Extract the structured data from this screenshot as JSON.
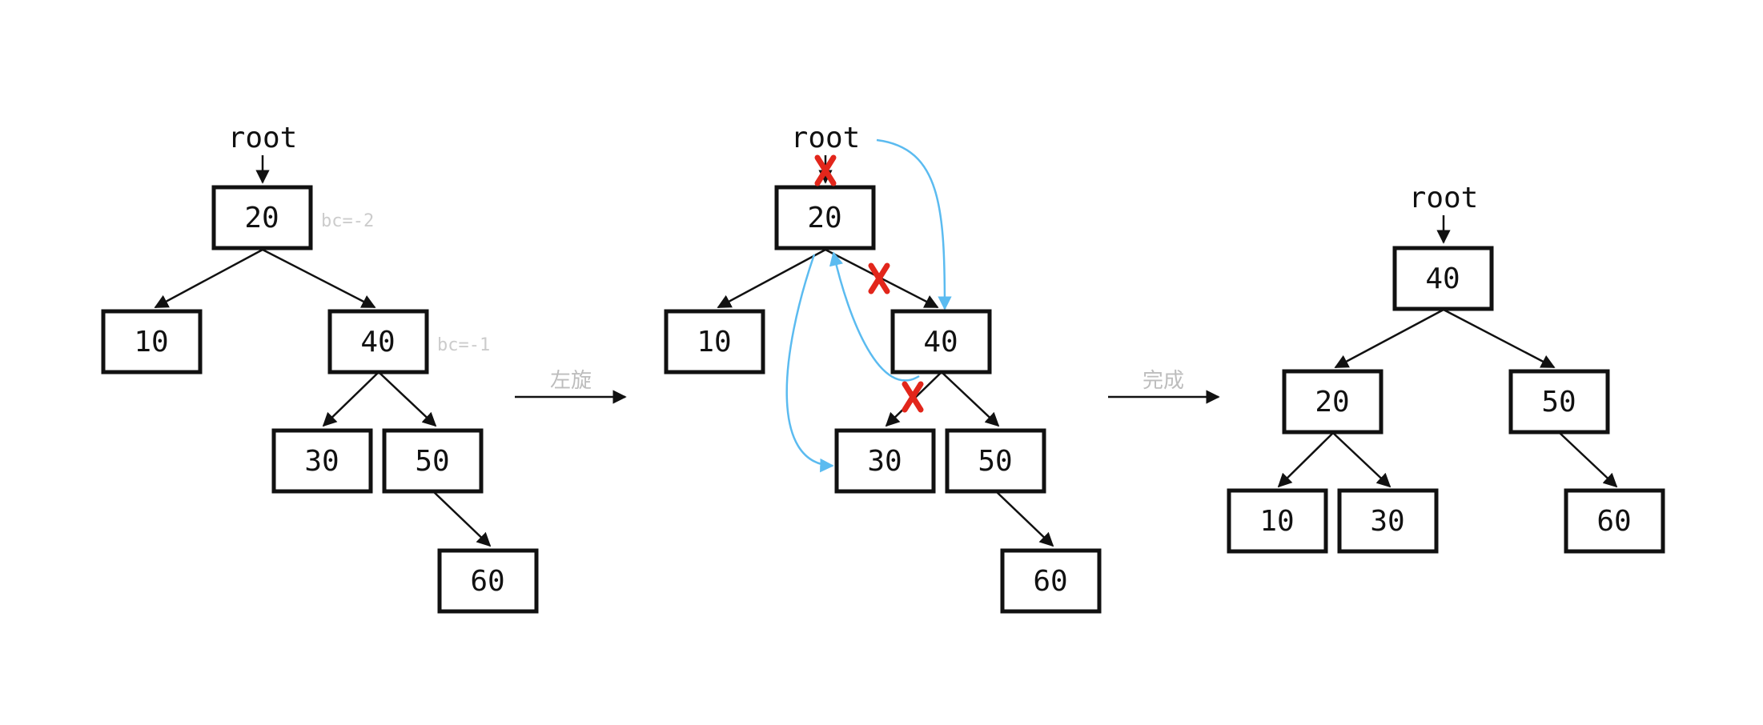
{
  "colors": {
    "stroke": "#111111",
    "annotation_grey": "#cccccc",
    "rotation_arrow": "#5bbbf0",
    "removed_cross": "#e2261b"
  },
  "steps": {
    "rotate_label": "左旋",
    "done_label": "完成"
  },
  "before": {
    "root_label": "root",
    "nodes": [
      "20",
      "10",
      "40",
      "30",
      "50",
      "60"
    ],
    "balance_20": "bc=-2",
    "balance_40": "bc=-1"
  },
  "during": {
    "root_label": "root",
    "nodes": [
      "20",
      "10",
      "40",
      "30",
      "50",
      "60"
    ]
  },
  "after": {
    "root_label": "root",
    "nodes": [
      "40",
      "20",
      "50",
      "10",
      "30",
      "60"
    ]
  }
}
